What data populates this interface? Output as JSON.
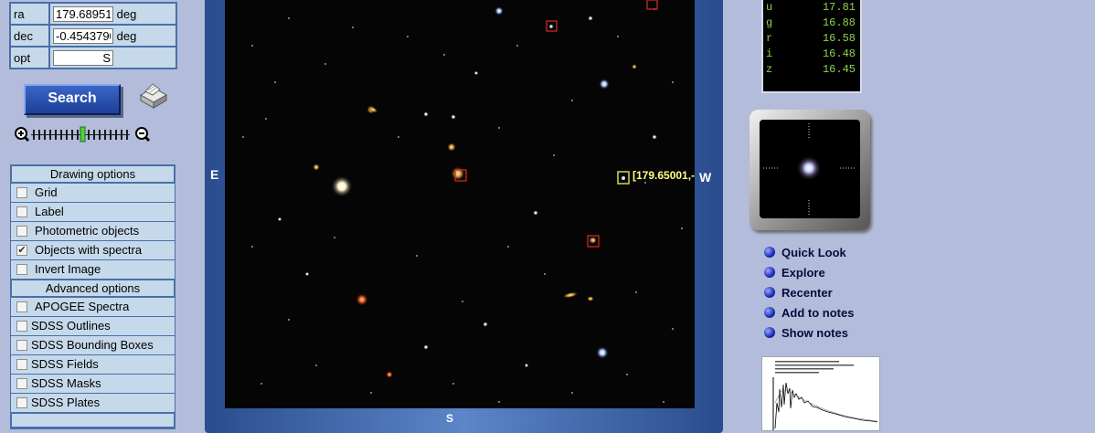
{
  "search_form": {
    "ra": {
      "label": "ra",
      "value": "179.68951",
      "unit": "deg"
    },
    "dec": {
      "label": "dec",
      "value": "-0.4543790",
      "unit": "deg"
    },
    "opt": {
      "label": "opt",
      "value": "S"
    },
    "search_label": "Search"
  },
  "drawing_options": {
    "header": "Drawing options",
    "items": [
      {
        "label": "Grid",
        "checked": false
      },
      {
        "label": "Label",
        "checked": false
      },
      {
        "label": "Photometric objects",
        "checked": false
      },
      {
        "label": "Objects with spectra",
        "checked": true
      },
      {
        "label": "Invert Image",
        "checked": false
      }
    ]
  },
  "advanced_options": {
    "header": "Advanced options",
    "items": [
      {
        "label": "APOGEE Spectra",
        "checked": false
      },
      {
        "label": "SDSS Outlines",
        "checked": false
      },
      {
        "label": "SDSS Bounding Boxes",
        "checked": false
      },
      {
        "label": "SDSS Fields",
        "checked": false
      },
      {
        "label": "SDSS Masks",
        "checked": false
      },
      {
        "label": "SDSS Plates",
        "checked": false
      }
    ]
  },
  "image": {
    "east": "E",
    "west": "W",
    "south": "S",
    "cursor_coords": "[179.65001,-"
  },
  "magnitudes": [
    {
      "band": "u",
      "value": "17.81"
    },
    {
      "band": "g",
      "value": "16.88"
    },
    {
      "band": "r",
      "value": "16.58"
    },
    {
      "band": "i",
      "value": "16.48"
    },
    {
      "band": "z",
      "value": "16.45"
    }
  ],
  "actions": [
    {
      "label": "Quick Look"
    },
    {
      "label": "Explore"
    },
    {
      "label": "Recenter"
    },
    {
      "label": "Add to notes"
    },
    {
      "label": "Show notes"
    }
  ],
  "icons": {
    "printer": "printer-icon",
    "zoom_in": "zoom-in-icon",
    "zoom_out": "zoom-out-icon",
    "bullet": "blue-bullet-icon"
  },
  "colors": {
    "panel": "#c5d9ea",
    "border": "#4a6fa8",
    "background": "#b3bddb",
    "magnitude_text": "#8fd14f",
    "spectro_marker": "#e0262b",
    "selected_marker": "#d4d94a"
  }
}
